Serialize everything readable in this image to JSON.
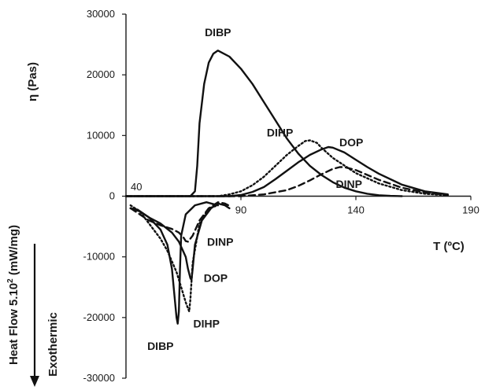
{
  "chart_data": {
    "type": "line",
    "x_axis": {
      "label": "T (ºC)",
      "range": [
        40,
        190
      ],
      "tick_values": [
        90,
        140,
        190
      ],
      "tick_labels": [
        "90",
        "140",
        "190"
      ],
      "origin_label": "40"
    },
    "y_axis": {
      "label": "η (Pas)",
      "range": [
        -30000,
        30000
      ],
      "tick_values": [
        30000,
        20000,
        10000,
        0,
        -10000,
        -20000,
        -30000
      ],
      "tick_labels": [
        "30000",
        "20000",
        "10000",
        "0",
        "-10000",
        "-20000",
        "-30000"
      ]
    },
    "y_axis_lower_label": {
      "heat_flow_prefix": "Heat Flow 5.10",
      "heat_flow_exponent": "2",
      "heat_flow_unit": " (mW/mg)",
      "direction": "Exothermic"
    },
    "grid": false,
    "viscosity_series": [
      {
        "name": "DIBP",
        "style": "solid",
        "x": [
          40,
          68,
          70,
          71,
          72,
          74,
          76,
          78,
          80,
          85,
          90,
          95,
          100,
          105,
          110,
          115,
          120,
          125,
          130,
          135,
          140,
          145,
          150,
          155,
          160
        ],
        "y": [
          0,
          0,
          800,
          5000,
          12000,
          18500,
          22000,
          23500,
          24000,
          23000,
          21000,
          18500,
          15500,
          12500,
          9500,
          7000,
          5000,
          3500,
          2300,
          1400,
          800,
          400,
          150,
          50,
          0
        ]
      },
      {
        "name": "DIHP",
        "style": "dotted",
        "x": [
          40,
          80,
          85,
          90,
          95,
          100,
          105,
          110,
          115,
          118,
          120,
          123,
          125,
          130,
          140,
          150,
          160,
          170,
          180
        ],
        "y": [
          0,
          0,
          300,
          800,
          1800,
          3200,
          5000,
          6800,
          8300,
          9100,
          9200,
          8800,
          8000,
          6300,
          3800,
          2100,
          1000,
          400,
          150
        ]
      },
      {
        "name": "DOP",
        "style": "solid",
        "x": [
          40,
          85,
          90,
          95,
          100,
          105,
          110,
          115,
          120,
          125,
          128,
          130,
          135,
          140,
          145,
          150,
          160,
          170,
          180
        ],
        "y": [
          0,
          0,
          200,
          700,
          1500,
          2800,
          4200,
          5600,
          6800,
          7700,
          8100,
          8000,
          7200,
          6000,
          4800,
          3700,
          1900,
          800,
          300
        ]
      },
      {
        "name": "DINP",
        "style": "dashed",
        "x": [
          40,
          90,
          100,
          110,
          115,
          120,
          125,
          130,
          133,
          135,
          140,
          145,
          150,
          160,
          170,
          180
        ],
        "y": [
          0,
          0,
          300,
          1000,
          1700,
          2600,
          3600,
          4500,
          4800,
          4800,
          4300,
          3500,
          2700,
          1400,
          600,
          200
        ]
      }
    ],
    "heat_flow_series": [
      {
        "name": "DIBP",
        "style": "solid",
        "x": [
          42,
          45,
          50,
          55,
          58,
          60,
          61,
          62,
          62.5,
          63,
          63.5,
          64,
          66,
          70,
          75,
          80
        ],
        "y": [
          -2000,
          -2200,
          -3500,
          -5500,
          -8000,
          -12000,
          -16000,
          -20000,
          -21000,
          -19000,
          -12000,
          -6500,
          -3000,
          -1500,
          -1000,
          -1500
        ]
      },
      {
        "name": "DIHP",
        "style": "dotted",
        "x": [
          42,
          46,
          50,
          55,
          58,
          62,
          64,
          66,
          67,
          67.5,
          68,
          69,
          72,
          76,
          80
        ],
        "y": [
          -1500,
          -2500,
          -4500,
          -7000,
          -9000,
          -12500,
          -15000,
          -17500,
          -18500,
          -19000,
          -17000,
          -11000,
          -4500,
          -2000,
          -1500
        ]
      },
      {
        "name": "DOP",
        "style": "solid",
        "x": [
          42,
          46,
          50,
          55,
          60,
          63,
          66,
          67,
          68,
          68.5,
          69,
          70,
          73,
          77,
          80,
          83,
          85
        ],
        "y": [
          -2000,
          -2500,
          -3500,
          -4500,
          -6000,
          -7500,
          -10000,
          -12000,
          -13500,
          -13800,
          -12000,
          -8000,
          -4000,
          -2000,
          -1200,
          -1500,
          -2000
        ]
      },
      {
        "name": "DINP",
        "style": "dashed",
        "x": [
          42,
          46,
          50,
          55,
          60,
          63,
          65,
          66,
          67,
          69,
          72,
          76,
          80,
          83,
          85
        ],
        "y": [
          -2000,
          -3000,
          -4000,
          -4800,
          -5400,
          -6000,
          -6800,
          -7400,
          -7500,
          -6500,
          -4000,
          -2000,
          -1000,
          -1200,
          -1600
        ]
      }
    ],
    "annotations": [
      {
        "text": "DIBP",
        "x": 80,
        "y": 27000
      },
      {
        "text": "DIHP",
        "x": 107,
        "y": 10500
      },
      {
        "text": "DOP",
        "x": 138,
        "y": 8900
      },
      {
        "text": "DINP",
        "x": 137,
        "y": 2000
      },
      {
        "text": "DINP",
        "x": 81,
        "y": -7500
      },
      {
        "text": "DOP",
        "x": 79,
        "y": -13500
      },
      {
        "text": "DIHP",
        "x": 75,
        "y": -21000
      },
      {
        "text": "DIBP",
        "x": 55,
        "y": -24700
      }
    ],
    "colors": {
      "line": "#111111",
      "axis": "#1a1a1a"
    }
  }
}
